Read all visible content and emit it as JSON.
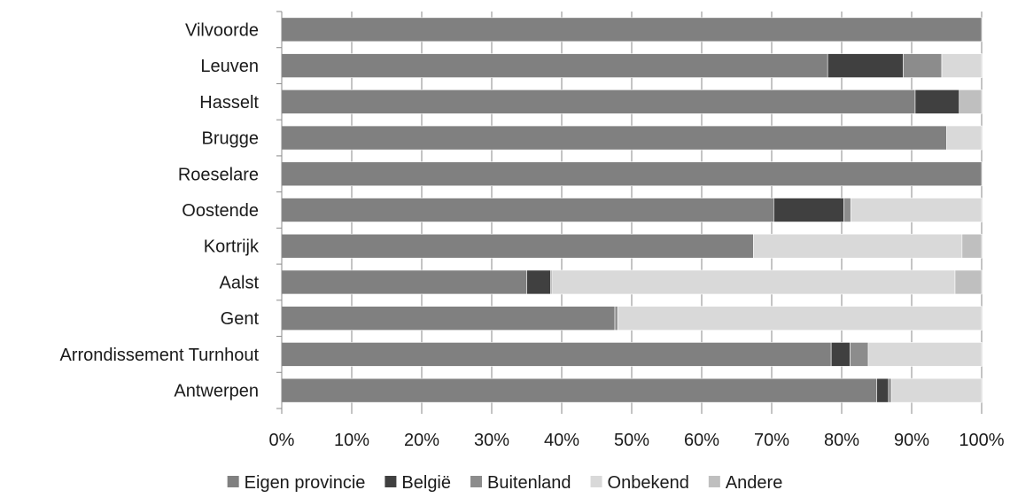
{
  "chart_data": {
    "type": "bar",
    "orientation": "horizontal",
    "stacked": "percent",
    "categories": [
      "Vilvoorde",
      "Leuven",
      "Hasselt",
      "Brugge",
      "Roeselare",
      "Oostende",
      "Kortrijk",
      "Aalst",
      "Gent",
      "Arrondissement Turnhout",
      "Antwerpen"
    ],
    "series": [
      {
        "name": "Eigen provincie",
        "color": "#808080",
        "values": [
          100,
          78,
          90.5,
          95,
          100,
          70.3,
          67.4,
          35,
          47.6,
          78.5,
          85
        ]
      },
      {
        "name": "België",
        "color": "#404040",
        "values": [
          0,
          10.8,
          6.3,
          0,
          0,
          10,
          0,
          3.4,
          0,
          2.7,
          1.7
        ]
      },
      {
        "name": "Buitenland",
        "color": "#8c8c8c",
        "values": [
          0,
          5.5,
          0,
          0,
          0,
          1,
          0,
          0.2,
          0.4,
          2.6,
          0.4
        ]
      },
      {
        "name": "Onbekend",
        "color": "#d9d9d9",
        "values": [
          0,
          5.7,
          0,
          5,
          0,
          18.7,
          29.8,
          57.6,
          52,
          16.2,
          12.9
        ]
      },
      {
        "name": "Andere",
        "color": "#bfbfbf",
        "values": [
          0,
          0,
          3.2,
          0,
          0,
          0,
          2.8,
          3.8,
          0,
          0,
          0
        ]
      }
    ],
    "x_ticks": [
      "0%",
      "10%",
      "20%",
      "30%",
      "40%",
      "50%",
      "60%",
      "70%",
      "80%",
      "90%",
      "100%"
    ],
    "xlim": [
      0,
      100
    ],
    "grid": true,
    "legend_position": "bottom"
  }
}
